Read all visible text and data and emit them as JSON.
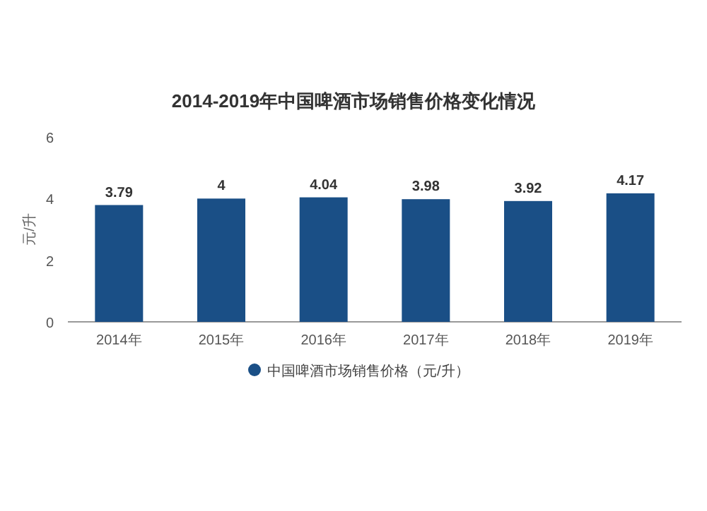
{
  "chart_data": {
    "type": "bar",
    "title": "2014-2019年中国啤酒市场销售价格变化情况",
    "ylabel": "元/升",
    "categories": [
      "2014年",
      "2015年",
      "2016年",
      "2017年",
      "2018年",
      "2019年"
    ],
    "series": [
      {
        "name": "中国啤酒市场销售价格（元/升）",
        "color": "#1a4f86",
        "values": [
          3.79,
          4,
          4.04,
          3.98,
          3.92,
          4.17
        ]
      }
    ],
    "data_labels": true,
    "ylim": [
      0,
      6
    ],
    "yticks": [
      0,
      2,
      4,
      6
    ],
    "legend": "bottom"
  }
}
